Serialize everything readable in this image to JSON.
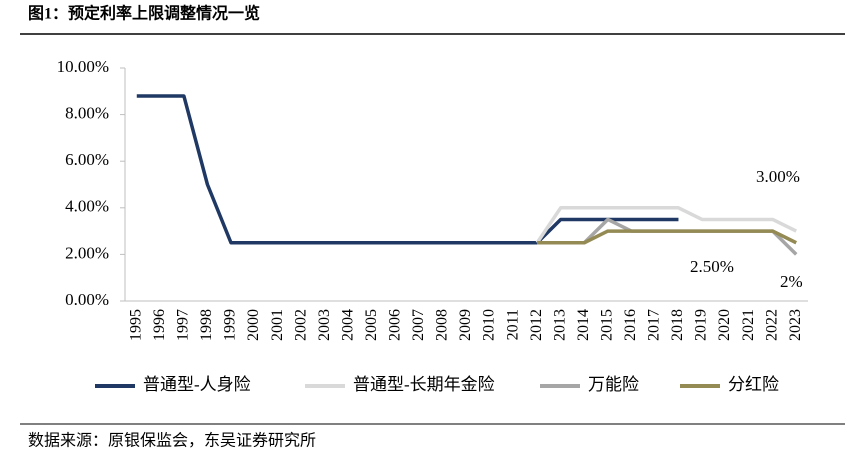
{
  "chart_data": {
    "type": "line",
    "title": "图1：预定利率上限调整情况一览",
    "categories": [
      "1995",
      "1996",
      "1997",
      "1998",
      "1999",
      "2000",
      "2001",
      "2002",
      "2003",
      "2004",
      "2005",
      "2006",
      "2007",
      "2008",
      "2009",
      "2010",
      "2011",
      "2012",
      "2013",
      "2014",
      "2015",
      "2016",
      "2017",
      "2018",
      "2019",
      "2020",
      "2021",
      "2022",
      "2023"
    ],
    "series": [
      {
        "name": "普通型-人身险",
        "color": "#1f3864",
        "values": [
          8.8,
          8.8,
          8.8,
          5,
          2.5,
          2.5,
          2.5,
          2.5,
          2.5,
          2.5,
          2.5,
          2.5,
          2.5,
          2.5,
          2.5,
          2.5,
          2.5,
          2.5,
          3.5,
          3.5,
          3.5,
          3.5,
          3.5,
          3.5,
          null,
          null,
          null,
          null,
          null
        ]
      },
      {
        "name": "普通型-长期年金险",
        "color": "#d9d9d9",
        "values": [
          null,
          null,
          null,
          null,
          null,
          null,
          null,
          null,
          null,
          null,
          null,
          null,
          null,
          null,
          null,
          null,
          null,
          2.5,
          4.0,
          4.0,
          4.0,
          4.0,
          4.0,
          4.0,
          3.5,
          3.5,
          3.5,
          3.5,
          3.0
        ]
      },
      {
        "name": "万能险",
        "color": "#a6a6a6",
        "values": [
          null,
          null,
          null,
          null,
          null,
          null,
          null,
          null,
          null,
          null,
          null,
          null,
          null,
          null,
          null,
          null,
          null,
          2.5,
          2.5,
          2.5,
          3.5,
          3.0,
          3.0,
          3.0,
          3.0,
          3.0,
          3.0,
          3.0,
          2.0
        ]
      },
      {
        "name": "分红险",
        "color": "#948a54",
        "values": [
          null,
          null,
          null,
          null,
          null,
          null,
          null,
          null,
          null,
          null,
          null,
          null,
          null,
          null,
          null,
          null,
          null,
          2.5,
          2.5,
          2.5,
          3.0,
          3.0,
          3.0,
          3.0,
          3.0,
          3.0,
          3.0,
          3.0,
          2.5
        ]
      }
    ],
    "ylim": [
      0,
      10
    ],
    "yticks": [
      {
        "value": 0,
        "label": "0.00%"
      },
      {
        "value": 2,
        "label": "2.00%"
      },
      {
        "value": 4,
        "label": "4.00%"
      },
      {
        "value": 6,
        "label": "6.00%"
      },
      {
        "value": 8,
        "label": "8.00%"
      },
      {
        "value": 10,
        "label": "10.00%"
      }
    ],
    "annotations": [
      "3.00%",
      "2.50%",
      "2%"
    ],
    "source": "数据来源：原银保监会，东吴证券研究所"
  }
}
